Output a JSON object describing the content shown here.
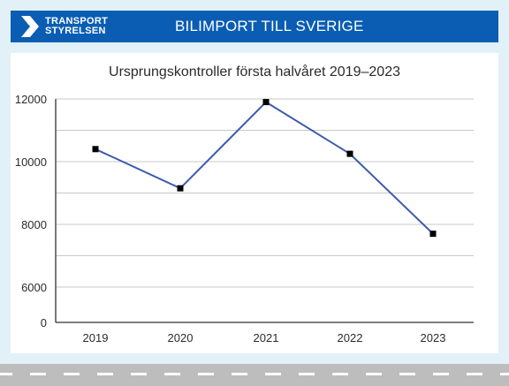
{
  "header": {
    "logo_line1": "TRANSPORT",
    "logo_line2": "STYRELSEN",
    "title": "BILIMPORT TILL SVERIGE"
  },
  "colors": {
    "banner": "#0a5db3",
    "background": "#e2f1f8",
    "line": "#3b5bab",
    "marker": "#000000",
    "grid": "#c8c8c8",
    "road": "#bdbdbd"
  },
  "chart_data": {
    "type": "line",
    "title": "Ursprungskontroller första halvåret 2019–2023",
    "xlabel": "",
    "ylabel": "",
    "categories": [
      "2019",
      "2020",
      "2021",
      "2022",
      "2023"
    ],
    "series": [
      {
        "values": [
          10400,
          9150,
          11900,
          10250,
          7700
        ]
      }
    ],
    "yticks": [
      "12000",
      "10000",
      "8000",
      "6000",
      "0"
    ],
    "ytick_values": [
      12000,
      10000,
      8000,
      6000,
      0
    ],
    "ylim": [
      0,
      12000
    ],
    "axis_break": true,
    "grid": true,
    "legend": "none"
  }
}
